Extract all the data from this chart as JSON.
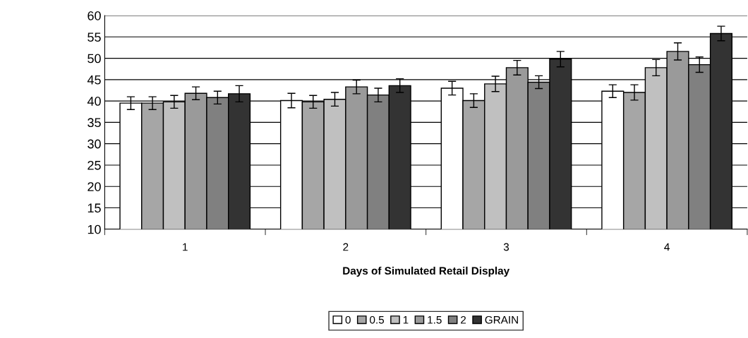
{
  "chart_data": {
    "type": "bar",
    "xlabel": "Days of Simulated Retail Display",
    "categories": [
      "1",
      "2",
      "3",
      "4"
    ],
    "series": [
      {
        "name": "0",
        "color": "#ffffff",
        "values": [
          39.5,
          40.1,
          43.0,
          42.3
        ],
        "errors": [
          1.5,
          1.7,
          1.6,
          1.5
        ]
      },
      {
        "name": "0.5",
        "color": "#a6a6a6",
        "values": [
          39.5,
          39.8,
          40.1,
          42.0
        ],
        "errors": [
          1.5,
          1.5,
          1.6,
          1.8
        ]
      },
      {
        "name": "1",
        "color": "#c0c0c0",
        "values": [
          39.8,
          40.4,
          44.0,
          47.8
        ],
        "errors": [
          1.5,
          1.6,
          1.8,
          1.9
        ]
      },
      {
        "name": "1.5",
        "color": "#9a9a9a",
        "values": [
          41.8,
          43.3,
          47.8,
          51.6
        ],
        "errors": [
          1.5,
          1.6,
          1.7,
          2.0
        ]
      },
      {
        "name": "2",
        "color": "#808080",
        "values": [
          40.8,
          41.4,
          44.4,
          48.5
        ],
        "errors": [
          1.5,
          1.6,
          1.5,
          1.8
        ]
      },
      {
        "name": "GRAIN",
        "color": "#333333",
        "values": [
          41.7,
          43.6,
          49.8,
          55.8
        ],
        "errors": [
          1.9,
          1.6,
          1.8,
          1.7
        ]
      }
    ],
    "ylim": [
      10,
      60
    ],
    "yticks": [
      10,
      15,
      20,
      25,
      30,
      35,
      40,
      45,
      50,
      55,
      60
    ],
    "grid": "y",
    "legend": "bottom"
  }
}
